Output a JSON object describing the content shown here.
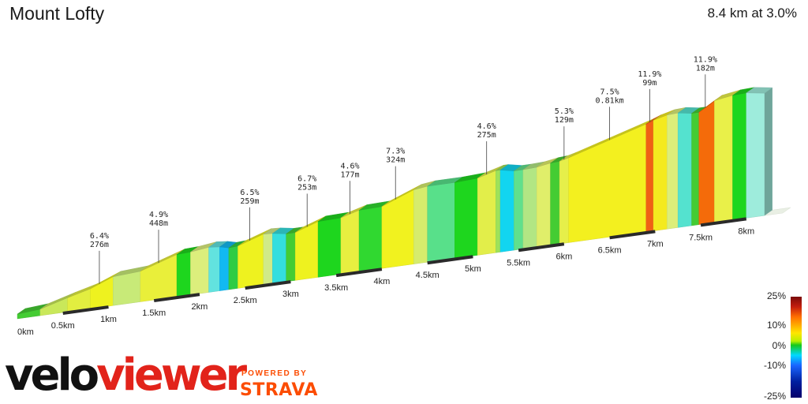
{
  "header": {
    "title": "Mount Lofty",
    "summary": "8.4 km at 3.0%"
  },
  "branding": {
    "logo_left": "velo",
    "logo_right": "viewer",
    "powered_by": "POWERED BY",
    "strava": "STRAVA"
  },
  "legend": {
    "labels": [
      "25%",
      "10%",
      "0%",
      "-10%",
      "-25%"
    ],
    "colors": [
      "#7a0a0a",
      "#c41e0e",
      "#ff6f00",
      "#ffe600",
      "#b8f000",
      "#15c81b",
      "#00d9ff",
      "#1a66ff",
      "#06006a"
    ]
  },
  "chart_data": {
    "type": "area",
    "title": "Mount Lofty",
    "subtitle": "8.4 km at 3.0%",
    "xlabel": "",
    "ylabel": "",
    "x_unit": "km",
    "xlim": [
      0,
      8.4
    ],
    "tick_labels": [
      "0km",
      "0.5km",
      "1km",
      "1.5km",
      "2km",
      "2.5km",
      "3km",
      "3.5km",
      "4km",
      "4.5km",
      "5km",
      "5.5km",
      "6km",
      "6.5km",
      "7km",
      "7.5km",
      "8km"
    ],
    "segments": [
      {
        "start_km": 0.0,
        "end_km": 0.25,
        "gradient_pct": 0,
        "color": "#44cc33"
      },
      {
        "start_km": 0.25,
        "end_km": 0.55,
        "gradient_pct": 3,
        "color": "#c9e85a"
      },
      {
        "start_km": 0.55,
        "end_km": 0.8,
        "gradient_pct": 5,
        "color": "#e2ee40"
      },
      {
        "start_km": 0.8,
        "end_km": 1.05,
        "gradient_pct": 6.4,
        "color": "#eef21f"
      },
      {
        "start_km": 1.05,
        "end_km": 1.35,
        "gradient_pct": 3,
        "color": "#c8ea78"
      },
      {
        "start_km": 1.35,
        "end_km": 1.75,
        "gradient_pct": 4.9,
        "color": "#e9ef3a"
      },
      {
        "start_km": 1.75,
        "end_km": 1.9,
        "gradient_pct": 2,
        "color": "#1ed61e"
      },
      {
        "start_km": 1.9,
        "end_km": 2.1,
        "gradient_pct": 3,
        "color": "#dcee7c"
      },
      {
        "start_km": 2.1,
        "end_km": 2.22,
        "gradient_pct": -1,
        "color": "#62e3df"
      },
      {
        "start_km": 2.22,
        "end_km": 2.32,
        "gradient_pct": -3,
        "color": "#12b9f2"
      },
      {
        "start_km": 2.32,
        "end_km": 2.42,
        "gradient_pct": 1,
        "color": "#2fcc44"
      },
      {
        "start_km": 2.42,
        "end_km": 2.7,
        "gradient_pct": 6.5,
        "color": "#eef21f"
      },
      {
        "start_km": 2.7,
        "end_km": 2.8,
        "gradient_pct": 3,
        "color": "#d0ea88"
      },
      {
        "start_km": 2.8,
        "end_km": 2.95,
        "gradient_pct": -2,
        "color": "#34dede"
      },
      {
        "start_km": 2.95,
        "end_km": 3.05,
        "gradient_pct": 1,
        "color": "#44cc33"
      },
      {
        "start_km": 3.05,
        "end_km": 3.3,
        "gradient_pct": 6.7,
        "color": "#eef21f"
      },
      {
        "start_km": 3.3,
        "end_km": 3.55,
        "gradient_pct": 1,
        "color": "#1ed61e"
      },
      {
        "start_km": 3.55,
        "end_km": 3.75,
        "gradient_pct": 4.6,
        "color": "#e8ef40"
      },
      {
        "start_km": 3.75,
        "end_km": 4.0,
        "gradient_pct": 1,
        "color": "#30d830"
      },
      {
        "start_km": 4.0,
        "end_km": 4.35,
        "gradient_pct": 7.3,
        "color": "#f1f21f"
      },
      {
        "start_km": 4.35,
        "end_km": 4.5,
        "gradient_pct": 3,
        "color": "#d6ec6c"
      },
      {
        "start_km": 4.5,
        "end_km": 4.8,
        "gradient_pct": 0,
        "color": "#58e08a"
      },
      {
        "start_km": 4.8,
        "end_km": 5.05,
        "gradient_pct": 1,
        "color": "#1ed61e"
      },
      {
        "start_km": 5.05,
        "end_km": 5.25,
        "gradient_pct": 4.6,
        "color": "#e2ee4a"
      },
      {
        "start_km": 5.25,
        "end_km": 5.3,
        "gradient_pct": 2,
        "color": "#9ee25a"
      },
      {
        "start_km": 5.3,
        "end_km": 5.45,
        "gradient_pct": -2,
        "color": "#12d5f0"
      },
      {
        "start_km": 5.45,
        "end_km": 5.55,
        "gradient_pct": 0,
        "color": "#60e08c"
      },
      {
        "start_km": 5.55,
        "end_km": 5.7,
        "gradient_pct": 2,
        "color": "#b2e684"
      },
      {
        "start_km": 5.7,
        "end_km": 5.85,
        "gradient_pct": 3,
        "color": "#e0ee6a"
      },
      {
        "start_km": 5.85,
        "end_km": 5.95,
        "gradient_pct": 1,
        "color": "#44cc33"
      },
      {
        "start_km": 5.95,
        "end_km": 6.05,
        "gradient_pct": 5.3,
        "color": "#e6ef4a"
      },
      {
        "start_km": 6.05,
        "end_km": 6.9,
        "gradient_pct": 7.5,
        "color": "#f3f01f"
      },
      {
        "start_km": 6.9,
        "end_km": 6.98,
        "gradient_pct": 11.9,
        "color": "#f06015"
      },
      {
        "start_km": 6.98,
        "end_km": 7.13,
        "gradient_pct": 7,
        "color": "#f4ea1f"
      },
      {
        "start_km": 7.13,
        "end_km": 7.25,
        "gradient_pct": 3,
        "color": "#dcee7a"
      },
      {
        "start_km": 7.25,
        "end_km": 7.4,
        "gradient_pct": -1,
        "color": "#54e2cf"
      },
      {
        "start_km": 7.4,
        "end_km": 7.48,
        "gradient_pct": 1,
        "color": "#44cc33"
      },
      {
        "start_km": 7.48,
        "end_km": 7.65,
        "gradient_pct": 11.9,
        "color": "#f46b0a"
      },
      {
        "start_km": 7.65,
        "end_km": 7.85,
        "gradient_pct": 4,
        "color": "#e9f049"
      },
      {
        "start_km": 7.85,
        "end_km": 8.0,
        "gradient_pct": 1,
        "color": "#1ed61e"
      },
      {
        "start_km": 8.0,
        "end_km": 8.2,
        "gradient_pct": -0.5,
        "color": "#9eecdc"
      }
    ],
    "profile_points": [
      {
        "km": 0.0,
        "rel": 0.0
      },
      {
        "km": 0.25,
        "rel": 0.015
      },
      {
        "km": 0.55,
        "rel": 0.083
      },
      {
        "km": 0.8,
        "rel": 0.135
      },
      {
        "km": 1.05,
        "rel": 0.215
      },
      {
        "km": 1.35,
        "rel": 0.23
      },
      {
        "km": 1.75,
        "rel": 0.335
      },
      {
        "km": 1.9,
        "rel": 0.34
      },
      {
        "km": 2.1,
        "rel": 0.36
      },
      {
        "km": 2.22,
        "rel": 0.35
      },
      {
        "km": 2.32,
        "rel": 0.33
      },
      {
        "km": 2.42,
        "rel": 0.335
      },
      {
        "km": 2.7,
        "rel": 0.41
      },
      {
        "km": 2.8,
        "rel": 0.405
      },
      {
        "km": 2.95,
        "rel": 0.385
      },
      {
        "km": 3.05,
        "rel": 0.385
      },
      {
        "km": 3.3,
        "rel": 0.455
      },
      {
        "km": 3.55,
        "rel": 0.46
      },
      {
        "km": 3.75,
        "rel": 0.505
      },
      {
        "km": 4.0,
        "rel": 0.51
      },
      {
        "km": 4.35,
        "rel": 0.62
      },
      {
        "km": 4.5,
        "rel": 0.635
      },
      {
        "km": 4.8,
        "rel": 0.635
      },
      {
        "km": 5.05,
        "rel": 0.645
      },
      {
        "km": 5.25,
        "rel": 0.69
      },
      {
        "km": 5.3,
        "rel": 0.69
      },
      {
        "km": 5.45,
        "rel": 0.665
      },
      {
        "km": 5.55,
        "rel": 0.665
      },
      {
        "km": 5.7,
        "rel": 0.67
      },
      {
        "km": 5.85,
        "rel": 0.69
      },
      {
        "km": 5.95,
        "rel": 0.695
      },
      {
        "km": 6.05,
        "rel": 0.715
      },
      {
        "km": 6.9,
        "rel": 0.92
      },
      {
        "km": 6.98,
        "rel": 0.945
      },
      {
        "km": 7.13,
        "rel": 0.975
      },
      {
        "km": 7.25,
        "rel": 0.98
      },
      {
        "km": 7.4,
        "rel": 0.96
      },
      {
        "km": 7.48,
        "rel": 0.96
      },
      {
        "km": 7.65,
        "rel": 1.045
      },
      {
        "km": 7.85,
        "rel": 1.07
      },
      {
        "km": 8.0,
        "rel": 1.075
      },
      {
        "km": 8.2,
        "rel": 1.05
      }
    ],
    "annotations": [
      {
        "km": 0.9,
        "gradient": "6.4%",
        "length": "276m"
      },
      {
        "km": 1.55,
        "gradient": "4.9%",
        "length": "448m"
      },
      {
        "km": 2.55,
        "gradient": "6.5%",
        "length": "259m"
      },
      {
        "km": 3.18,
        "gradient": "6.7%",
        "length": "253m"
      },
      {
        "km": 3.65,
        "gradient": "4.6%",
        "length": "177m"
      },
      {
        "km": 4.15,
        "gradient": "7.3%",
        "length": "324m"
      },
      {
        "km": 5.15,
        "gradient": "4.6%",
        "length": "275m"
      },
      {
        "km": 6.0,
        "gradient": "5.3%",
        "length": "129m"
      },
      {
        "km": 6.5,
        "gradient": "7.5%",
        "length": "0.81km"
      },
      {
        "km": 6.94,
        "gradient": "11.9%",
        "length": "99m"
      },
      {
        "km": 7.55,
        "gradient": "11.9%",
        "length": "182m"
      }
    ]
  }
}
